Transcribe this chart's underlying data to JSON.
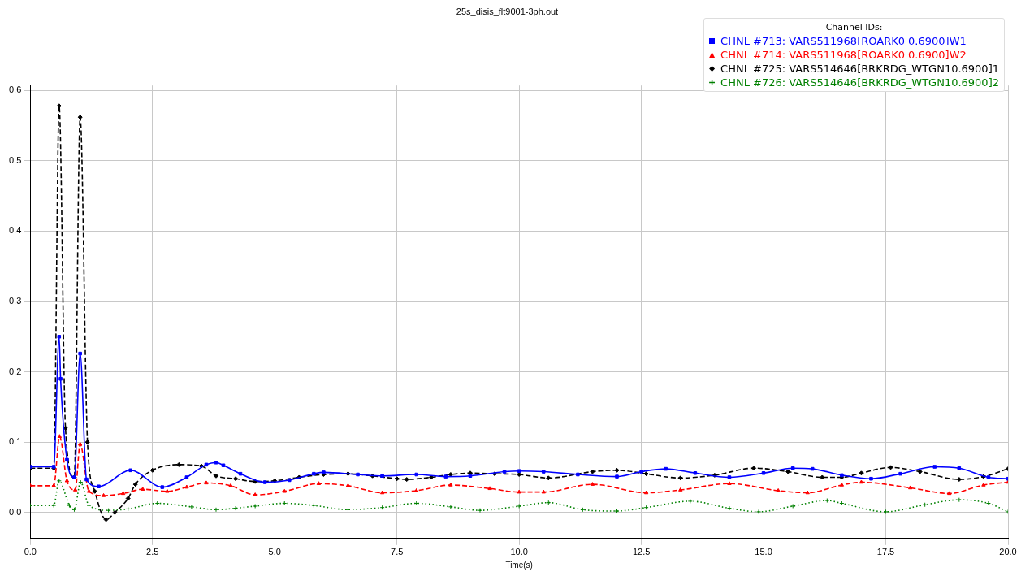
{
  "chart_data": {
    "type": "line",
    "title": "25s_disis_flt9001-3ph.out",
    "xlabel": "Time(s)",
    "legend_title": "Channel IDs:",
    "legend": "top right",
    "grid": true,
    "xlim": [
      0,
      20
    ],
    "xticks": [
      {
        "value": 0,
        "label": "0.0"
      },
      {
        "value": 2.5,
        "label": "2.5"
      },
      {
        "value": 5,
        "label": "5.0"
      },
      {
        "value": 7.5,
        "label": "7.5"
      },
      {
        "value": 10,
        "label": "10.0"
      },
      {
        "value": 12.5,
        "label": "12.5"
      },
      {
        "value": 15,
        "label": "15.0"
      },
      {
        "value": 17.5,
        "label": "17.5"
      },
      {
        "value": 20,
        "label": "20.0"
      }
    ],
    "ylim": [
      -0.037,
      0.607
    ],
    "yticks": [
      {
        "value": 0,
        "label": "0.0"
      },
      0.1,
      0.2,
      0.3,
      0.4,
      0.5,
      0.6
    ],
    "series": [
      {
        "name": "CHNL #713: VARS511968[ROARK0 0.6900]W1",
        "color": "#0000ff",
        "marker": "square",
        "line_style": "solid",
        "x": [
          0,
          0.48,
          0.59,
          0.62,
          0.75,
          0.9,
          1.02,
          1.15,
          1.4,
          2.05,
          2.7,
          3.2,
          3.6,
          3.8,
          3.95,
          4.3,
          4.8,
          5.3,
          5.8,
          6,
          6.7,
          7.2,
          7.9,
          8.5,
          9,
          9.7,
          10,
          10.5,
          11.2,
          12,
          12.5,
          13,
          13.6,
          14.3,
          15,
          15.6,
          16,
          16.6,
          17.2,
          17.8,
          18.5,
          19,
          19.6,
          20
        ],
        "values": [
          0.065,
          0.065,
          0.25,
          0.19,
          0.075,
          0.05,
          0.226,
          0.047,
          0.037,
          0.06,
          0.036,
          0.05,
          0.068,
          0.071,
          0.067,
          0.055,
          0.043,
          0.046,
          0.055,
          0.057,
          0.054,
          0.052,
          0.054,
          0.051,
          0.052,
          0.058,
          0.059,
          0.058,
          0.054,
          0.051,
          0.058,
          0.062,
          0.056,
          0.05,
          0.056,
          0.063,
          0.062,
          0.053,
          0.048,
          0.055,
          0.065,
          0.063,
          0.05,
          0.048
        ]
      },
      {
        "name": "CHNL #714: VARS511968[ROARK0 0.6900]W2",
        "color": "#ff0000",
        "marker": "triangle",
        "line_style": "dashed",
        "x": [
          0,
          0.48,
          0.6,
          0.75,
          0.92,
          1.02,
          1.2,
          1.5,
          1.9,
          2.3,
          2.8,
          3.2,
          3.6,
          4.1,
          4.6,
          5.2,
          5.9,
          6.5,
          7.2,
          7.9,
          8.6,
          9.4,
          10,
          10.5,
          11.5,
          12.6,
          13.3,
          14.3,
          15.3,
          15.9,
          16.6,
          17,
          18,
          18.8,
          19.5,
          20
        ],
        "values": [
          0.038,
          0.038,
          0.108,
          0.045,
          0.032,
          0.097,
          0.03,
          0.024,
          0.027,
          0.033,
          0.03,
          0.036,
          0.042,
          0.038,
          0.025,
          0.03,
          0.041,
          0.038,
          0.028,
          0.031,
          0.039,
          0.034,
          0.029,
          0.029,
          0.04,
          0.028,
          0.032,
          0.041,
          0.031,
          0.028,
          0.039,
          0.043,
          0.035,
          0.027,
          0.039,
          0.043
        ]
      },
      {
        "name": "CHNL #725: VARS514646[BRKRDG_WTGN10.6900]1",
        "color": "#000000",
        "marker": "diamond",
        "line_style": "dashed",
        "x": [
          0,
          0.48,
          0.59,
          0.72,
          0.9,
          1.02,
          1.17,
          1.32,
          1.55,
          1.73,
          2,
          2.15,
          2.5,
          3.04,
          3.5,
          3.8,
          4.2,
          4.6,
          5,
          5.5,
          6,
          6.5,
          7,
          7.5,
          7.7,
          8.2,
          8.6,
          9,
          9.5,
          10,
          10.6,
          11.5,
          12,
          12.6,
          13.3,
          14,
          14.8,
          15.5,
          16.2,
          16.6,
          17,
          17.6,
          18.2,
          19,
          19.5,
          20
        ],
        "values": [
          0.063,
          0.063,
          0.578,
          0.12,
          0.05,
          0.562,
          0.1,
          0.03,
          -0.01,
          0,
          0.02,
          0.04,
          0.06,
          0.068,
          0.066,
          0.052,
          0.048,
          0.044,
          0.045,
          0.05,
          0.054,
          0.055,
          0.052,
          0.048,
          0.047,
          0.05,
          0.054,
          0.056,
          0.055,
          0.054,
          0.049,
          0.058,
          0.06,
          0.055,
          0.049,
          0.053,
          0.063,
          0.058,
          0.05,
          0.05,
          0.056,
          0.064,
          0.058,
          0.047,
          0.051,
          0.062
        ]
      },
      {
        "name": "CHNL #726: VARS514646[BRKRDG_WTGN10.6900]2",
        "color": "#008000",
        "marker": "cross",
        "line_style": "dotted",
        "x": [
          0,
          0.48,
          0.59,
          0.8,
          0.9,
          1.03,
          1.2,
          1.6,
          2,
          2.6,
          3.3,
          3.8,
          4.2,
          4.6,
          5.2,
          5.8,
          6.5,
          7.2,
          7.9,
          8.6,
          9.2,
          10,
          10.6,
          11.3,
          12,
          12.6,
          13.5,
          14.3,
          14.9,
          15.6,
          16.3,
          16.6,
          17.5,
          18.3,
          19,
          19.6,
          20
        ],
        "values": [
          0.01,
          0.01,
          0.045,
          0.01,
          0.004,
          0.043,
          0.01,
          0.003,
          0.005,
          0.013,
          0.008,
          0.004,
          0.006,
          0.009,
          0.013,
          0.01,
          0.004,
          0.007,
          0.013,
          0.008,
          0.003,
          0.009,
          0.014,
          0.004,
          0.002,
          0.007,
          0.016,
          0.006,
          0.001,
          0.009,
          0.017,
          0.013,
          0.001,
          0.011,
          0.018,
          0.013,
          0.001
        ]
      }
    ]
  }
}
